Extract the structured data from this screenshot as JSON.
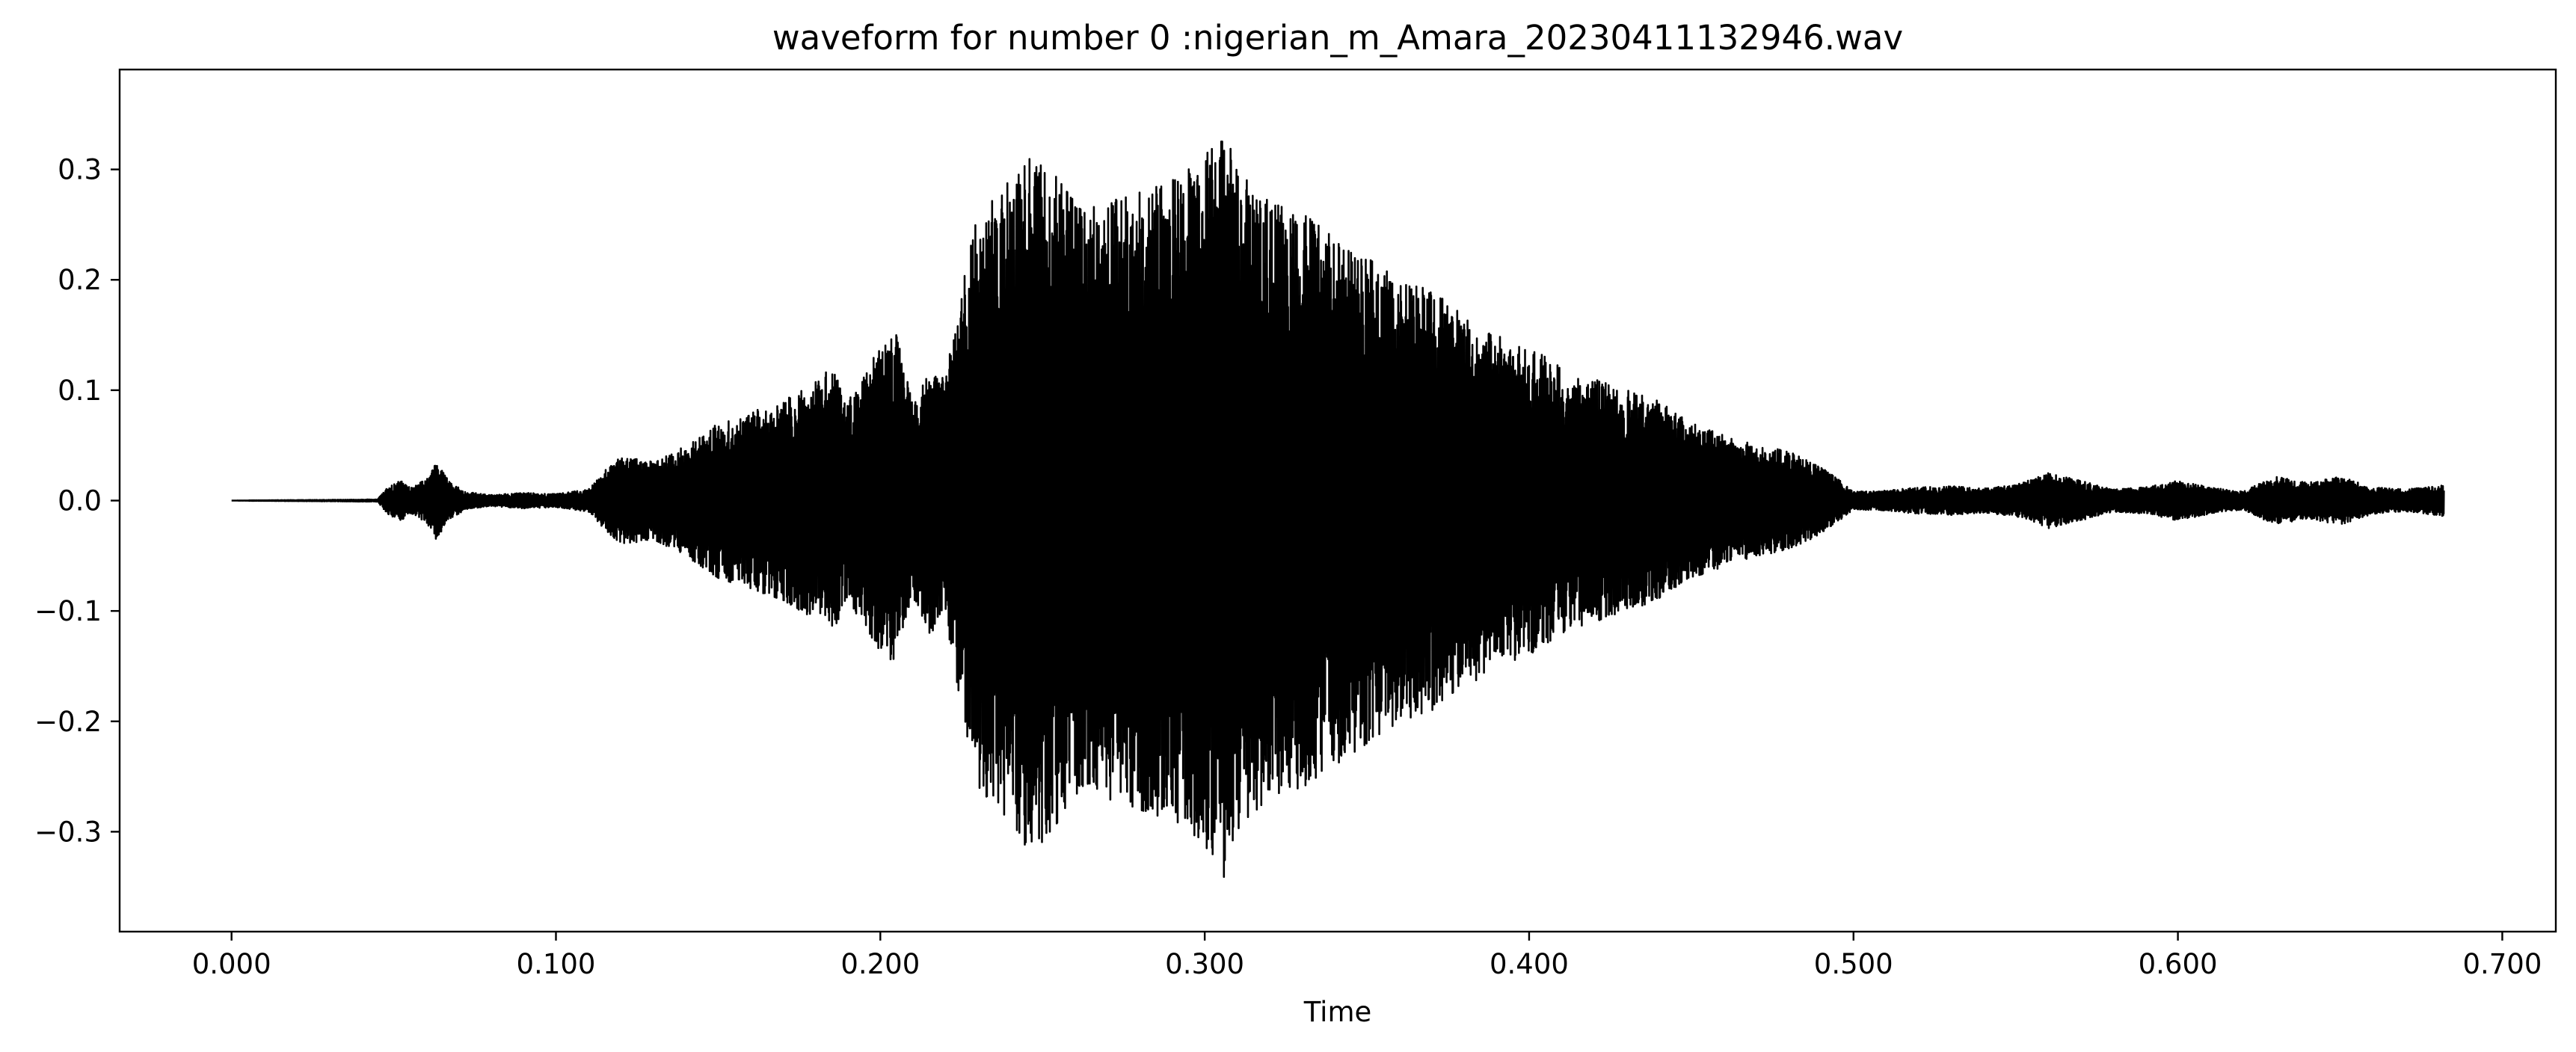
{
  "chart_data": {
    "type": "line",
    "title": "waveform for number 0 :nigerian_m_Amara_20230411132946.wav",
    "xlabel": "Time",
    "ylabel": "",
    "xlim": [
      -0.0345,
      0.7165
    ],
    "ylim": [
      -0.3905,
      0.3905
    ],
    "xticks": [
      0.0,
      0.1,
      0.2,
      0.3,
      0.4,
      0.5,
      0.6,
      0.7
    ],
    "xtick_labels": [
      "0.000",
      "0.100",
      "0.200",
      "0.300",
      "0.400",
      "0.500",
      "0.600",
      "0.700"
    ],
    "yticks": [
      0.3,
      0.2,
      0.1,
      0.0,
      -0.1,
      -0.2,
      -0.3
    ],
    "ytick_labels": [
      "0.3",
      "0.2",
      "0.1",
      "0.0",
      "−0.1",
      "−0.2",
      "−0.3"
    ],
    "grid": false,
    "legend": "none",
    "line_color": "#000000",
    "series": [
      {
        "x_range": [
          0.0,
          0.682
        ],
        "envelope": {
          "t": [
            0.0,
            0.045,
            0.048,
            0.052,
            0.056,
            0.06,
            0.063,
            0.067,
            0.072,
            0.08,
            0.09,
            0.1,
            0.11,
            0.116,
            0.12,
            0.13,
            0.14,
            0.15,
            0.16,
            0.17,
            0.18,
            0.185,
            0.19,
            0.2,
            0.205,
            0.21,
            0.215,
            0.22,
            0.225,
            0.23,
            0.24,
            0.245,
            0.25,
            0.255,
            0.26,
            0.27,
            0.28,
            0.29,
            0.3,
            0.305,
            0.31,
            0.32,
            0.33,
            0.34,
            0.35,
            0.36,
            0.37,
            0.38,
            0.39,
            0.4,
            0.41,
            0.42,
            0.43,
            0.44,
            0.45,
            0.46,
            0.47,
            0.48,
            0.49,
            0.495,
            0.5,
            0.51,
            0.52,
            0.53,
            0.54,
            0.55,
            0.56,
            0.57,
            0.58,
            0.59,
            0.6,
            0.61,
            0.62,
            0.63,
            0.64,
            0.65,
            0.66,
            0.67,
            0.682
          ],
          "amplitude": [
            0.0,
            0.001,
            0.012,
            0.018,
            0.012,
            0.02,
            0.035,
            0.018,
            0.008,
            0.005,
            0.007,
            0.006,
            0.01,
            0.03,
            0.04,
            0.035,
            0.05,
            0.07,
            0.08,
            0.09,
            0.11,
            0.12,
            0.09,
            0.14,
            0.15,
            0.09,
            0.12,
            0.11,
            0.19,
            0.26,
            0.29,
            0.32,
            0.31,
            0.29,
            0.27,
            0.27,
            0.28,
            0.29,
            0.31,
            0.35,
            0.3,
            0.27,
            0.26,
            0.24,
            0.22,
            0.2,
            0.19,
            0.17,
            0.15,
            0.14,
            0.12,
            0.11,
            0.1,
            0.09,
            0.07,
            0.06,
            0.05,
            0.045,
            0.03,
            0.02,
            0.008,
            0.009,
            0.012,
            0.013,
            0.011,
            0.014,
            0.025,
            0.018,
            0.01,
            0.012,
            0.018,
            0.012,
            0.008,
            0.022,
            0.016,
            0.022,
            0.012,
            0.01,
            0.014
          ]
        }
      }
    ]
  }
}
